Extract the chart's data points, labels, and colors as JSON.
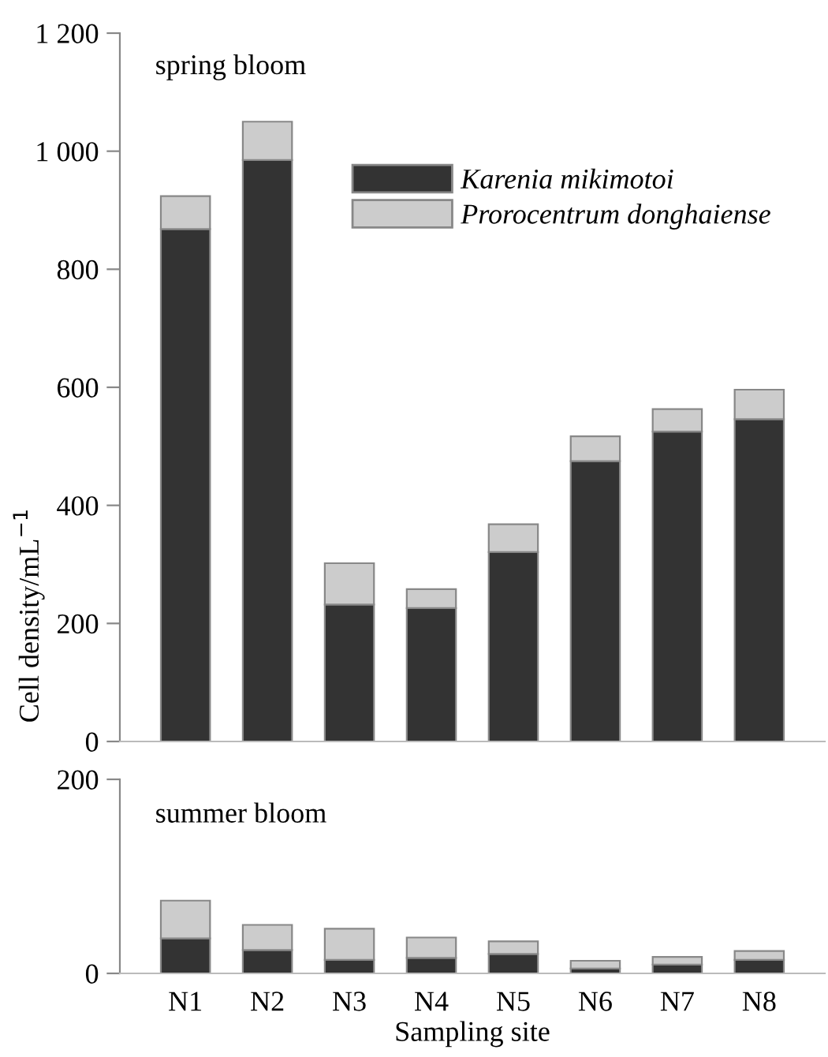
{
  "chart_data": [
    {
      "type": "bar",
      "stacked": true,
      "ylabel": "Cell density/mL$^{−1}$",
      "annotations": [
        "spring bloom"
      ],
      "categories": [
        null,
        null,
        null,
        null,
        null,
        null,
        null,
        null
      ],
      "tick_labels": "y",
      "legend": "top right",
      "ylim": [
        0,
        1200
      ],
      "yticks": [
        0,
        200,
        400,
        600,
        800,
        {
          "value": 1000,
          "label": "1 000"
        },
        {
          "value": 1200,
          "label": "1 200"
        }
      ],
      "grid": false,
      "series": [
        {
          "name": "Karenia mikimotoi",
          "color": "#333333",
          "values": [
            868,
            985,
            232,
            226,
            321,
            475,
            525,
            546
          ]
        },
        {
          "name": "Prorocentrum donghaiense",
          "color": "#cccccc",
          "values": [
            56,
            65,
            70,
            32,
            47,
            42,
            38,
            50
          ]
        }
      ]
    },
    {
      "type": "bar",
      "stacked": true,
      "xlabel": "Sampling site",
      "annotations": [
        "summer bloom"
      ],
      "categories": [
        "N1",
        "N2",
        "N3",
        "N4",
        "N5",
        "N6",
        "N7",
        "N8"
      ],
      "ylim": [
        0,
        200
      ],
      "yticks": [
        0,
        200
      ],
      "grid": false,
      "series": [
        {
          "color": "#333333",
          "values": [
            36,
            24,
            14,
            16,
            20,
            5,
            9,
            14
          ]
        },
        {
          "color": "#cccccc",
          "values": [
            39,
            26,
            32,
            21,
            13,
            8,
            8,
            9
          ]
        }
      ]
    }
  ]
}
